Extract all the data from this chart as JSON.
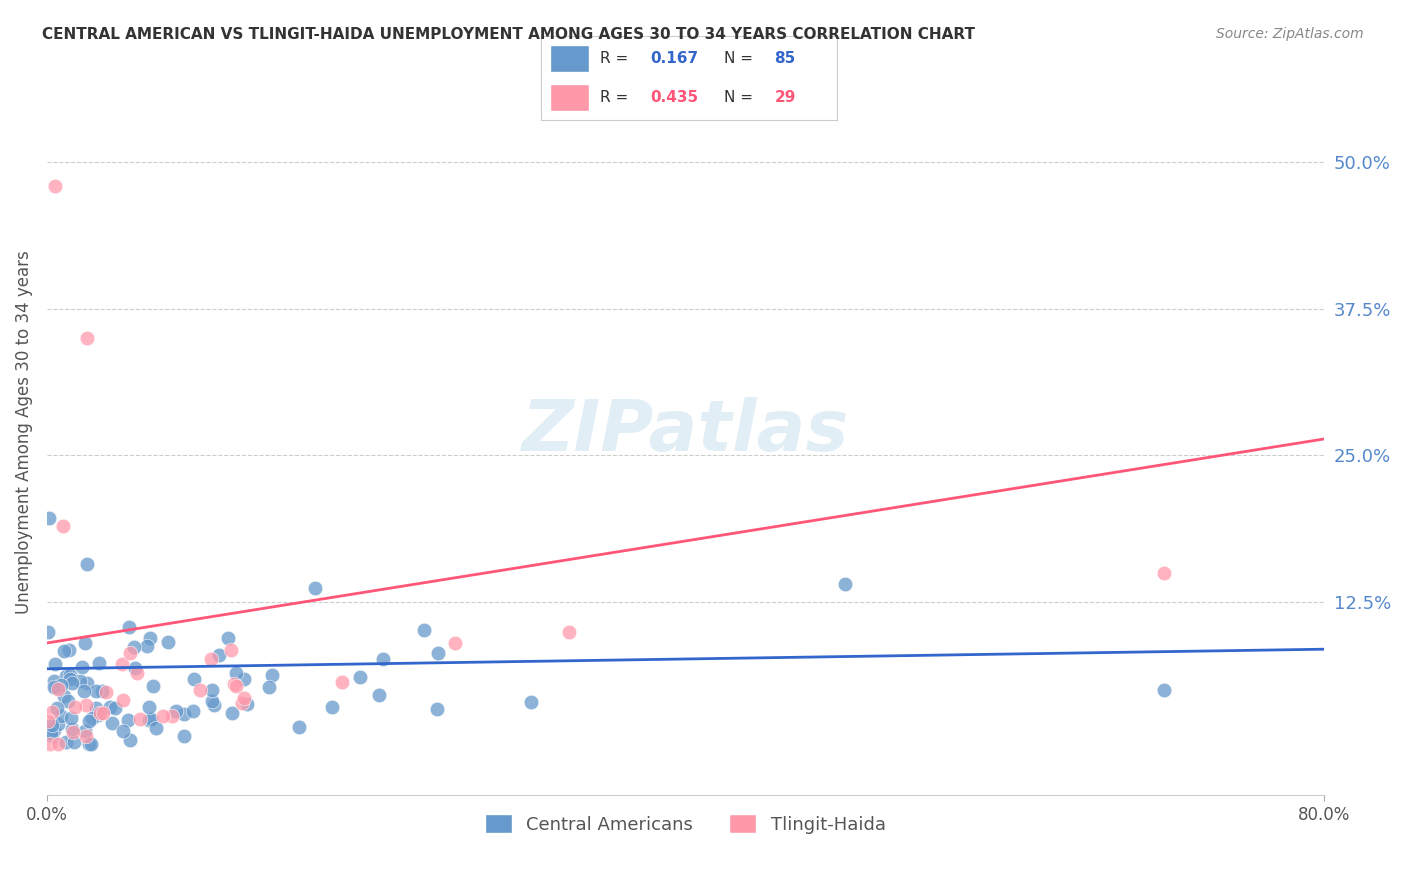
{
  "title": "CENTRAL AMERICAN VS TLINGIT-HAIDA UNEMPLOYMENT AMONG AGES 30 TO 34 YEARS CORRELATION CHART",
  "source": "Source: ZipAtlas.com",
  "ylabel": "Unemployment Among Ages 30 to 34 years",
  "xlim": [
    0,
    0.8
  ],
  "ylim": [
    -0.04,
    0.58
  ],
  "ytick_labels": [
    "12.5%",
    "25.0%",
    "37.5%",
    "50.0%"
  ],
  "ytick_positions": [
    0.125,
    0.25,
    0.375,
    0.5
  ],
  "grid_color": "#cccccc",
  "background_color": "#ffffff",
  "blue_color": "#6699cc",
  "pink_color": "#ff99aa",
  "blue_R": 0.167,
  "blue_N": 85,
  "pink_R": 0.435,
  "pink_N": 29,
  "blue_line_color": "#3366cc",
  "pink_line_color": "#ff5577",
  "title_color": "#333333",
  "watermark_color": "#d0e4f0",
  "right_label_color": "#5588cc"
}
